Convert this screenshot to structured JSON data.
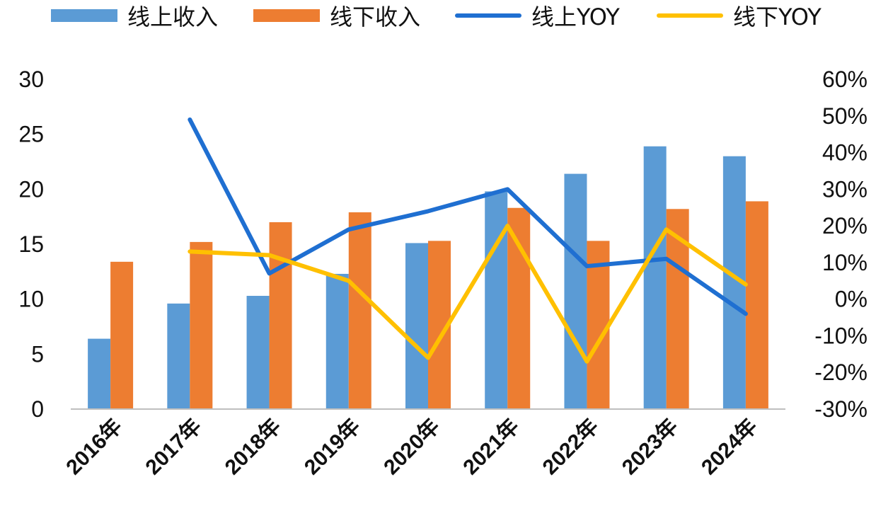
{
  "legend": {
    "online_revenue": "线上收入",
    "offline_revenue": "线下收入",
    "online_yoy": "线上YOY",
    "offline_yoy": "线下YOY"
  },
  "colors": {
    "online_bar": "#5B9BD5",
    "offline_bar": "#ED7D31",
    "online_line": "#1F6FD1",
    "offline_line": "#FFC000"
  },
  "chart_data": {
    "type": "bar",
    "categories": [
      "2016年",
      "2017年",
      "2018年",
      "2019年",
      "2020年",
      "2021年",
      "2022年",
      "2023年",
      "2024年"
    ],
    "series": [
      {
        "name": "线上收入",
        "type": "bar",
        "axis": "left",
        "values": [
          6.4,
          9.6,
          10.3,
          12.3,
          15.1,
          19.8,
          21.4,
          23.9,
          23.0
        ]
      },
      {
        "name": "线下收入",
        "type": "bar",
        "axis": "left",
        "values": [
          13.4,
          15.2,
          17.0,
          17.9,
          15.3,
          18.3,
          15.3,
          18.2,
          18.9
        ]
      },
      {
        "name": "线上YOY",
        "type": "line",
        "axis": "right",
        "values": [
          null,
          0.49,
          0.07,
          0.19,
          0.24,
          0.3,
          0.09,
          0.11,
          -0.04
        ]
      },
      {
        "name": "线下YOY",
        "type": "line",
        "axis": "right",
        "values": [
          null,
          0.13,
          0.12,
          0.05,
          -0.16,
          0.2,
          -0.17,
          0.19,
          0.04
        ]
      }
    ],
    "y_left": {
      "min": 0,
      "max": 30,
      "ticks": [
        "0",
        "5",
        "10",
        "15",
        "20",
        "25",
        "30"
      ]
    },
    "y_right": {
      "min": -0.3,
      "max": 0.6,
      "ticks": [
        "-30%",
        "-20%",
        "-10%",
        "0%",
        "10%",
        "20%",
        "30%",
        "40%",
        "50%",
        "60%"
      ]
    },
    "legend_position": "top",
    "grid": false
  }
}
